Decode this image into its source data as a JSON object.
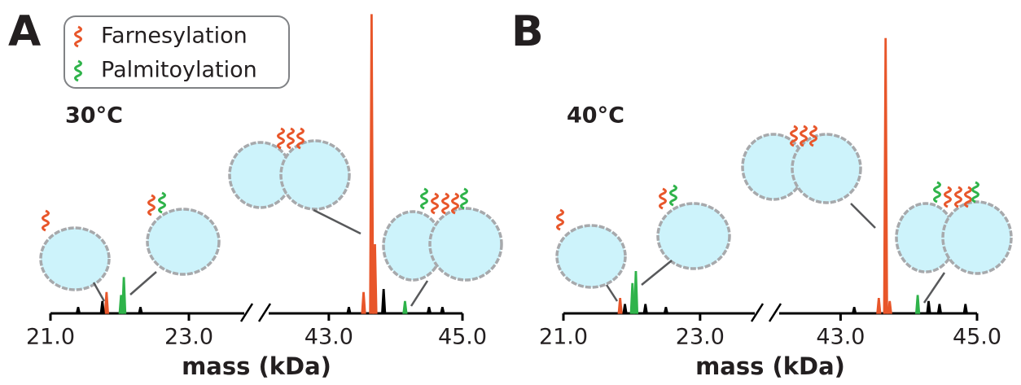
{
  "chart_data": [
    {
      "type": "spectrum",
      "panel": "A",
      "annotation": "30°C",
      "xlabel": "mass (kDa)",
      "ylim": [
        0,
        100
      ],
      "segments": [
        {
          "xlim": [
            21.0,
            23.8
          ],
          "xticks": [
            {
              "value": 21.0,
              "label": "21.0"
            },
            {
              "value": 23.0,
              "label": "23.0"
            }
          ]
        },
        {
          "xlim": [
            42.1,
            45.0
          ],
          "xticks": [
            {
              "value": 43.0,
              "label": "43.0"
            },
            {
              "value": 45.0,
              "label": "45.0"
            }
          ]
        }
      ],
      "series": [
        {
          "name": "Farnesylation",
          "color": "#e8562a",
          "x": [
            21.81,
            43.52,
            43.64,
            43.69
          ],
          "values": [
            7,
            7,
            100,
            23
          ]
        },
        {
          "name": "Palmitoylation",
          "color": "#2fb34a",
          "x": [
            22.02,
            22.06,
            44.14
          ],
          "values": [
            6,
            12,
            4
          ]
        },
        {
          "color": "#000000",
          "x": [
            21.4,
            21.75,
            22.3,
            43.3,
            43.82,
            44.5,
            44.7
          ],
          "values": [
            2,
            4,
            2,
            2,
            8,
            2,
            2
          ]
        }
      ]
    },
    {
      "type": "spectrum",
      "panel": "B",
      "annotation": "40°C",
      "xlabel": "mass (kDa)",
      "ylim": [
        0,
        100
      ],
      "segments": [
        {
          "xlim": [
            21.0,
            23.8
          ],
          "xticks": [
            {
              "value": 21.0,
              "label": "21.0"
            },
            {
              "value": 23.0,
              "label": "23.0"
            }
          ]
        },
        {
          "xlim": [
            42.1,
            45.0
          ],
          "xticks": [
            {
              "value": 43.0,
              "label": "43.0"
            },
            {
              "value": 45.0,
              "label": "45.0"
            }
          ]
        }
      ],
      "series": [
        {
          "color": "#e8562a",
          "x": [
            21.83,
            43.56,
            43.66,
            43.72
          ],
          "values": [
            5,
            5,
            92,
            4
          ]
        },
        {
          "color": "#2fb34a",
          "x": [
            22.01,
            22.06,
            44.13
          ],
          "values": [
            10,
            14,
            6
          ]
        },
        {
          "color": "#000000",
          "x": [
            21.9,
            22.2,
            22.5,
            43.2,
            44.29,
            44.45,
            44.83
          ],
          "values": [
            3,
            3,
            2,
            2,
            4,
            3,
            3
          ]
        }
      ]
    }
  ]
}
